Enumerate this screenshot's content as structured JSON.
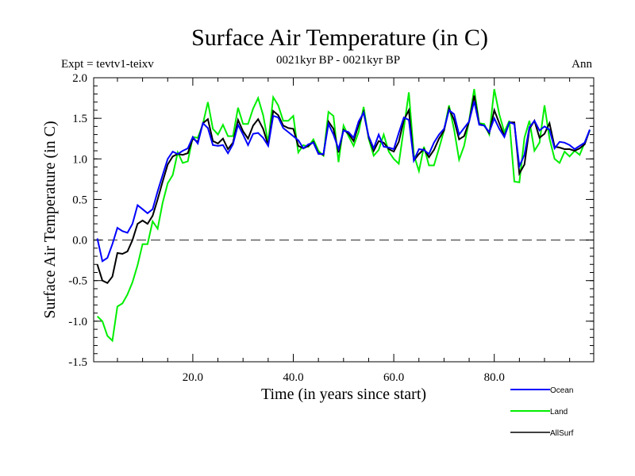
{
  "chart_data": {
    "type": "line",
    "title": "Surface Air Temperature (in C)",
    "subtitle": "0021kyr BP - 0021kyr BP",
    "left_label": "Expt = tevtv1-teixv",
    "right_label": "Ann",
    "xlabel": "Time (in years since start)",
    "ylabel": "Surface Air Temperature (in C)",
    "xlim": [
      0,
      100
    ],
    "ylim": [
      -1.5,
      2.0
    ],
    "x_ticks": [
      20,
      40,
      60,
      80
    ],
    "x_tick_labels": [
      "20.0",
      "40.0",
      "60.0",
      "80.0"
    ],
    "y_ticks": [
      -1.5,
      -1.0,
      -0.5,
      0.0,
      0.5,
      1.0,
      1.5,
      2.0
    ],
    "y_tick_labels": [
      "-1.5",
      "-1.0",
      "-0.5",
      "0.0",
      "0.5",
      "1.0",
      "1.5",
      "2.0"
    ],
    "reference_line": {
      "y": 0.0,
      "style": "dashed",
      "color": "#555555"
    },
    "legend_position": "bottom-right",
    "x": [
      1,
      2,
      3,
      4,
      5,
      6,
      7,
      8,
      9,
      10,
      11,
      12,
      13,
      14,
      15,
      16,
      17,
      18,
      19,
      20,
      21,
      22,
      23,
      24,
      25,
      26,
      27,
      28,
      29,
      30,
      31,
      32,
      33,
      34,
      35,
      36,
      37,
      38,
      39,
      40,
      41,
      42,
      43,
      44,
      45,
      46,
      47,
      48,
      49,
      50,
      51,
      52,
      53,
      54,
      55,
      56,
      57,
      58,
      59,
      60,
      61,
      62,
      63,
      64,
      65,
      66,
      67,
      68,
      69,
      70,
      71,
      72,
      73,
      74,
      75,
      76,
      77,
      78,
      79,
      80,
      81,
      82,
      83,
      84,
      85,
      86,
      87,
      88,
      89,
      90,
      91,
      92,
      93,
      94,
      95,
      96,
      97,
      98,
      99
    ],
    "series": [
      {
        "name": "Ocean",
        "color": "#0000ff",
        "values": [
          0.02,
          -0.26,
          -0.22,
          -0.05,
          0.15,
          0.11,
          0.09,
          0.2,
          0.43,
          0.38,
          0.33,
          0.38,
          0.6,
          0.8,
          1.0,
          1.09,
          1.06,
          1.1,
          1.13,
          1.27,
          1.19,
          1.44,
          1.38,
          1.17,
          1.16,
          1.17,
          1.07,
          1.18,
          1.42,
          1.3,
          1.17,
          1.31,
          1.32,
          1.26,
          1.16,
          1.53,
          1.51,
          1.38,
          1.33,
          1.28,
          1.23,
          1.13,
          1.18,
          1.2,
          1.06,
          1.06,
          1.43,
          1.3,
          1.12,
          1.35,
          1.33,
          1.26,
          1.46,
          1.57,
          1.28,
          1.13,
          1.3,
          1.15,
          1.14,
          1.12,
          1.32,
          1.51,
          1.48,
          0.98,
          1.12,
          1.11,
          1.06,
          1.2,
          1.3,
          1.37,
          1.6,
          1.55,
          1.3,
          1.38,
          1.46,
          1.71,
          1.42,
          1.41,
          1.33,
          1.5,
          1.37,
          1.27,
          1.45,
          1.43,
          0.91,
          1.05,
          1.39,
          1.47,
          1.35,
          1.4,
          1.36,
          1.13,
          1.21,
          1.2,
          1.17,
          1.12,
          1.16,
          1.2,
          1.36
        ]
      },
      {
        "name": "Land",
        "color": "#00ee00",
        "values": [
          -0.94,
          -1.0,
          -1.18,
          -1.24,
          -0.82,
          -0.78,
          -0.67,
          -0.52,
          -0.31,
          -0.05,
          -0.05,
          0.23,
          0.14,
          0.46,
          0.7,
          0.8,
          1.08,
          0.95,
          0.97,
          1.27,
          1.26,
          1.43,
          1.7,
          1.37,
          1.3,
          1.42,
          1.28,
          1.28,
          1.63,
          1.43,
          1.43,
          1.62,
          1.75,
          1.54,
          1.2,
          1.76,
          1.66,
          1.47,
          1.47,
          1.53,
          1.08,
          1.17,
          1.15,
          1.24,
          1.1,
          1.04,
          1.58,
          1.53,
          0.96,
          1.41,
          1.28,
          1.16,
          1.33,
          1.64,
          1.25,
          1.04,
          1.11,
          1.3,
          1.09,
          1.0,
          0.94,
          1.38,
          1.82,
          1.05,
          0.85,
          1.15,
          0.92,
          0.92,
          1.13,
          1.35,
          1.66,
          1.36,
          0.99,
          1.16,
          1.47,
          1.86,
          1.44,
          1.43,
          1.3,
          1.86,
          1.55,
          1.33,
          1.47,
          0.72,
          0.71,
          1.26,
          1.47,
          1.1,
          1.2,
          1.66,
          1.25,
          1.0,
          0.95,
          1.09,
          1.03,
          1.1,
          1.05,
          1.2,
          1.35
        ]
      },
      {
        "name": "AllSurf",
        "color": "#000000",
        "values": [
          -0.3,
          -0.5,
          -0.53,
          -0.45,
          -0.16,
          -0.17,
          -0.14,
          0.0,
          0.2,
          0.24,
          0.2,
          0.3,
          0.5,
          0.72,
          0.93,
          1.03,
          1.06,
          1.05,
          1.07,
          1.25,
          1.21,
          1.44,
          1.49,
          1.22,
          1.19,
          1.25,
          1.12,
          1.2,
          1.48,
          1.34,
          1.25,
          1.41,
          1.49,
          1.37,
          1.17,
          1.59,
          1.54,
          1.41,
          1.38,
          1.37,
          1.16,
          1.13,
          1.16,
          1.21,
          1.07,
          1.05,
          1.46,
          1.37,
          1.08,
          1.36,
          1.31,
          1.22,
          1.42,
          1.58,
          1.27,
          1.1,
          1.22,
          1.2,
          1.12,
          1.09,
          1.21,
          1.48,
          1.6,
          0.98,
          1.06,
          1.12,
          1.02,
          1.11,
          1.25,
          1.35,
          1.62,
          1.48,
          1.24,
          1.28,
          1.46,
          1.78,
          1.43,
          1.41,
          1.32,
          1.6,
          1.44,
          1.28,
          1.45,
          1.45,
          0.82,
          0.93,
          1.37,
          1.47,
          1.26,
          1.31,
          1.44,
          1.15,
          1.14,
          1.12,
          1.12,
          1.1,
          1.13,
          1.18,
          1.36
        ]
      }
    ]
  }
}
